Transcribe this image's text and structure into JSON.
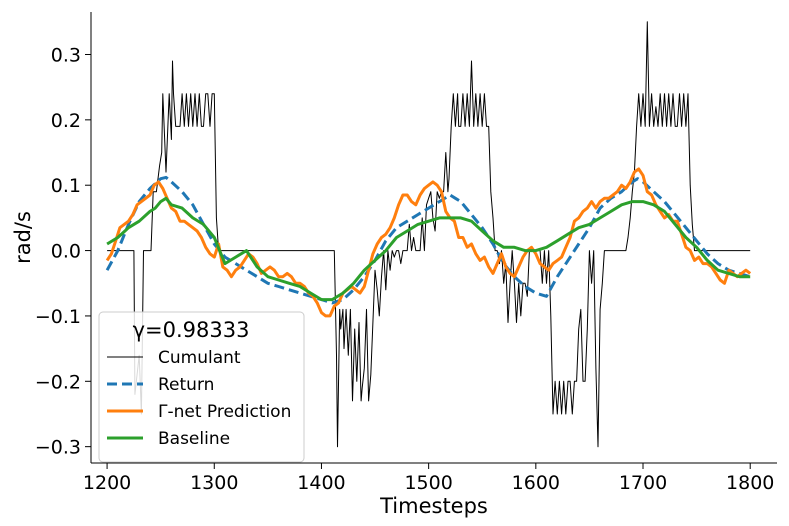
{
  "chart_data": {
    "type": "line",
    "xlabel": "Timesteps",
    "ylabel": "rad/s",
    "xlim": [
      1185,
      1825
    ],
    "ylim": [
      -0.325,
      0.365
    ],
    "xticks": [
      1200,
      1300,
      1400,
      1500,
      1600,
      1700,
      1800
    ],
    "xtick_labels": [
      "1200",
      "1300",
      "1400",
      "1500",
      "1600",
      "1700",
      "1800"
    ],
    "yticks": [
      -0.3,
      -0.2,
      -0.1,
      0.0,
      0.1,
      0.2,
      0.3
    ],
    "ytick_labels": [
      "−0.3",
      "−0.2",
      "−0.1",
      "0.0",
      "0.1",
      "0.2",
      "0.3"
    ],
    "grid": false,
    "legend_position": "lower-left",
    "legend_title": "γ=0.98333",
    "series": [
      {
        "name": "Cumulant",
        "color": "#000000",
        "style": "solid-thin",
        "x": [
          1200,
          1225,
          1226,
          1230,
          1232,
          1234,
          1236,
          1238,
          1241,
          1243,
          1246,
          1249,
          1251,
          1252,
          1255,
          1258,
          1260,
          1261,
          1262,
          1264,
          1268,
          1270,
          1272,
          1274,
          1276,
          1278,
          1280,
          1282,
          1284,
          1286,
          1288,
          1290,
          1292,
          1294,
          1296,
          1298,
          1300,
          1302,
          1304,
          1306,
          1312,
          1400,
          1412,
          1414,
          1415,
          1417,
          1418,
          1420,
          1421,
          1423,
          1425,
          1427,
          1429,
          1431,
          1433,
          1435,
          1437,
          1438,
          1440,
          1442,
          1444,
          1446,
          1448,
          1450,
          1452,
          1454,
          1456,
          1458,
          1460,
          1462,
          1464,
          1466,
          1468,
          1470,
          1472,
          1474,
          1476,
          1478,
          1480,
          1482,
          1484,
          1486,
          1488,
          1490,
          1492,
          1494,
          1496,
          1498,
          1500,
          1502,
          1504,
          1506,
          1508,
          1510,
          1512,
          1514,
          1516,
          1518,
          1519,
          1521,
          1523,
          1525,
          1527,
          1528,
          1530,
          1532,
          1534,
          1536,
          1538,
          1540,
          1542,
          1544,
          1546,
          1548,
          1550,
          1552,
          1554,
          1556,
          1558,
          1560,
          1562,
          1564,
          1566,
          1568,
          1570,
          1572,
          1574,
          1576,
          1578,
          1580,
          1582,
          1584,
          1586,
          1588,
          1590,
          1592,
          1594,
          1596,
          1598,
          1600,
          1602,
          1604,
          1606,
          1608,
          1610,
          1612,
          1614,
          1616,
          1618,
          1620,
          1622,
          1624,
          1626,
          1628,
          1630,
          1632,
          1634,
          1636,
          1638,
          1640,
          1642,
          1644,
          1646,
          1648,
          1650,
          1652,
          1654,
          1656,
          1658,
          1660,
          1662,
          1664,
          1666,
          1668,
          1670,
          1672,
          1674,
          1676,
          1678,
          1680,
          1682,
          1684,
          1686,
          1688,
          1690,
          1692,
          1694,
          1696,
          1698,
          1700,
          1702,
          1704,
          1706,
          1708,
          1710,
          1712,
          1714,
          1716,
          1718,
          1720,
          1722,
          1724,
          1726,
          1728,
          1730,
          1732,
          1734,
          1736,
          1738,
          1740,
          1742,
          1744,
          1746,
          1748,
          1750,
          1752,
          1760,
          1800
        ],
        "y": [
          0.0,
          0.0,
          -0.22,
          -0.16,
          -0.25,
          0.0,
          0.0,
          0.0,
          0.0,
          0.09,
          0.09,
          0.13,
          0.15,
          0.24,
          0.12,
          0.24,
          0.17,
          0.29,
          0.24,
          0.19,
          0.19,
          0.24,
          0.19,
          0.24,
          0.19,
          0.24,
          0.19,
          0.24,
          0.19,
          0.24,
          0.19,
          0.19,
          0.24,
          0.24,
          0.19,
          0.24,
          0.24,
          0.05,
          0.0,
          0.0,
          0.0,
          0.0,
          0.0,
          -0.16,
          -0.3,
          -0.09,
          -0.12,
          -0.09,
          -0.15,
          -0.09,
          -0.16,
          -0.09,
          -0.23,
          -0.12,
          -0.2,
          -0.11,
          -0.23,
          -0.21,
          -0.18,
          -0.09,
          -0.23,
          -0.19,
          -0.11,
          -0.03,
          -0.06,
          -0.1,
          -0.04,
          0.0,
          -0.06,
          0.0,
          -0.03,
          0.0,
          -0.01,
          0.0,
          0.0,
          -0.02,
          0.0,
          0.0,
          0.0,
          0.04,
          0.0,
          0.02,
          0.0,
          0.0,
          0.0,
          0.05,
          0.0,
          0.07,
          0.08,
          0.09,
          0.05,
          0.03,
          0.09,
          0.08,
          0.09,
          0.09,
          0.15,
          0.09,
          0.11,
          0.19,
          0.24,
          0.19,
          0.24,
          0.19,
          0.19,
          0.24,
          0.19,
          0.24,
          0.19,
          0.29,
          0.19,
          0.24,
          0.19,
          0.24,
          0.19,
          0.24,
          0.19,
          0.19,
          0.09,
          0.05,
          0.0,
          0.0,
          -0.02,
          0.0,
          -0.05,
          -0.02,
          -0.11,
          -0.05,
          0.0,
          -0.05,
          -0.11,
          -0.05,
          -0.1,
          -0.05,
          -0.05,
          -0.07,
          0.0,
          0.0,
          0.0,
          0.0,
          0.0,
          0.0,
          -0.05,
          0.0,
          -0.05,
          0.0,
          -0.1,
          -0.25,
          -0.2,
          -0.25,
          -0.2,
          -0.25,
          -0.2,
          -0.25,
          -0.2,
          -0.2,
          -0.25,
          -0.2,
          -0.2,
          -0.12,
          -0.09,
          -0.2,
          -0.2,
          -0.12,
          0.0,
          -0.05,
          0.0,
          -0.18,
          -0.3,
          -0.09,
          -0.05,
          0.0,
          0.0,
          0.0,
          0.0,
          0.0,
          0.0,
          0.0,
          0.0,
          0.0,
          0.0,
          0.0,
          0.02,
          0.05,
          0.09,
          0.12,
          0.19,
          0.24,
          0.19,
          0.24,
          0.19,
          0.35,
          0.19,
          0.24,
          0.19,
          0.22,
          0.19,
          0.24,
          0.19,
          0.24,
          0.19,
          0.24,
          0.19,
          0.24,
          0.19,
          0.19,
          0.24,
          0.19,
          0.24,
          0.19,
          0.24,
          0.1,
          0.04,
          0.0,
          0.0,
          0.0,
          0.0,
          0.0
        ]
      },
      {
        "name": "Return",
        "color": "#1f77b4",
        "style": "dashed",
        "x": [
          1200,
          1210,
          1220,
          1230,
          1240,
          1250,
          1255,
          1260,
          1270,
          1280,
          1290,
          1300,
          1310,
          1320,
          1330,
          1340,
          1350,
          1360,
          1370,
          1380,
          1390,
          1400,
          1410,
          1420,
          1430,
          1440,
          1450,
          1460,
          1470,
          1480,
          1490,
          1500,
          1510,
          1520,
          1525,
          1530,
          1540,
          1550,
          1560,
          1570,
          1580,
          1590,
          1600,
          1610,
          1620,
          1630,
          1640,
          1650,
          1660,
          1670,
          1680,
          1690,
          1695,
          1700,
          1710,
          1720,
          1730,
          1740,
          1750,
          1760,
          1770,
          1780,
          1790,
          1800
        ],
        "y": [
          -0.03,
          0.0,
          0.04,
          0.075,
          0.095,
          0.11,
          0.112,
          0.105,
          0.09,
          0.07,
          0.04,
          0.01,
          -0.01,
          -0.02,
          -0.03,
          -0.04,
          -0.05,
          -0.055,
          -0.06,
          -0.065,
          -0.07,
          -0.075,
          -0.08,
          -0.075,
          -0.06,
          -0.04,
          -0.015,
          0.015,
          0.035,
          0.045,
          0.055,
          0.065,
          0.075,
          0.085,
          0.08,
          0.075,
          0.055,
          0.035,
          0.01,
          -0.02,
          -0.04,
          -0.055,
          -0.065,
          -0.07,
          -0.04,
          -0.015,
          0.01,
          0.035,
          0.065,
          0.08,
          0.09,
          0.105,
          0.11,
          0.105,
          0.09,
          0.075,
          0.055,
          0.035,
          0.015,
          -0.005,
          -0.02,
          -0.03,
          -0.035,
          -0.04
        ]
      },
      {
        "name": "Γ-net Prediction",
        "color": "#ff7f0e",
        "style": "solid",
        "x": [
          1200,
          1204,
          1208,
          1212,
          1216,
          1220,
          1224,
          1228,
          1232,
          1236,
          1240,
          1244,
          1248,
          1252,
          1256,
          1260,
          1264,
          1268,
          1272,
          1276,
          1280,
          1284,
          1288,
          1292,
          1296,
          1300,
          1304,
          1308,
          1312,
          1316,
          1320,
          1324,
          1328,
          1332,
          1336,
          1340,
          1344,
          1348,
          1352,
          1356,
          1360,
          1364,
          1368,
          1372,
          1376,
          1380,
          1384,
          1388,
          1392,
          1396,
          1400,
          1404,
          1408,
          1412,
          1416,
          1420,
          1424,
          1428,
          1432,
          1436,
          1440,
          1444,
          1448,
          1452,
          1456,
          1460,
          1464,
          1468,
          1472,
          1476,
          1480,
          1484,
          1488,
          1492,
          1496,
          1500,
          1504,
          1508,
          1512,
          1516,
          1520,
          1524,
          1528,
          1532,
          1536,
          1540,
          1544,
          1548,
          1552,
          1556,
          1560,
          1564,
          1568,
          1572,
          1576,
          1580,
          1584,
          1588,
          1592,
          1596,
          1600,
          1604,
          1608,
          1612,
          1616,
          1620,
          1624,
          1628,
          1632,
          1636,
          1640,
          1644,
          1648,
          1652,
          1656,
          1660,
          1664,
          1668,
          1672,
          1676,
          1680,
          1684,
          1688,
          1692,
          1696,
          1700,
          1704,
          1708,
          1712,
          1716,
          1720,
          1724,
          1728,
          1732,
          1736,
          1740,
          1744,
          1748,
          1752,
          1756,
          1760,
          1764,
          1768,
          1772,
          1776,
          1780,
          1784,
          1788,
          1792,
          1796,
          1800
        ],
        "y": [
          -0.015,
          -0.005,
          0.015,
          0.035,
          0.04,
          0.045,
          0.055,
          0.07,
          0.075,
          0.08,
          0.085,
          0.1,
          0.105,
          0.095,
          0.08,
          0.065,
          0.06,
          0.045,
          0.045,
          0.04,
          0.035,
          0.03,
          0.02,
          0.005,
          -0.005,
          -0.01,
          0.01,
          -0.025,
          -0.03,
          -0.04,
          -0.03,
          -0.025,
          -0.015,
          -0.005,
          -0.01,
          -0.02,
          -0.035,
          -0.03,
          -0.025,
          -0.03,
          -0.04,
          -0.04,
          -0.035,
          -0.04,
          -0.05,
          -0.05,
          -0.055,
          -0.065,
          -0.07,
          -0.08,
          -0.095,
          -0.1,
          -0.1,
          -0.085,
          -0.08,
          -0.065,
          -0.06,
          -0.055,
          -0.06,
          -0.065,
          -0.055,
          -0.03,
          -0.005,
          0.01,
          0.02,
          0.025,
          0.035,
          0.05,
          0.07,
          0.085,
          0.085,
          0.075,
          0.07,
          0.085,
          0.095,
          0.1,
          0.105,
          0.1,
          0.09,
          0.06,
          0.05,
          0.045,
          0.02,
          0.02,
          0.005,
          0.01,
          -0.005,
          -0.015,
          -0.01,
          -0.025,
          -0.035,
          -0.02,
          -0.005,
          -0.025,
          -0.035,
          -0.04,
          -0.025,
          -0.01,
          0.0,
          0.005,
          -0.005,
          -0.02,
          -0.025,
          -0.03,
          -0.02,
          -0.015,
          -0.01,
          0.005,
          0.02,
          0.045,
          0.05,
          0.06,
          0.065,
          0.075,
          0.065,
          0.075,
          0.08,
          0.08,
          0.085,
          0.09,
          0.1,
          0.095,
          0.105,
          0.12,
          0.125,
          0.115,
          0.09,
          0.085,
          0.07,
          0.06,
          0.05,
          0.055,
          0.045,
          0.045,
          0.025,
          0.005,
          0.0,
          -0.015,
          -0.01,
          -0.02,
          -0.02,
          -0.025,
          -0.035,
          -0.045,
          -0.05,
          -0.03,
          -0.035,
          -0.04,
          -0.035,
          -0.03,
          -0.035
        ]
      },
      {
        "name": "Baseline",
        "color": "#2ca02c",
        "style": "solid",
        "x": [
          1200,
          1210,
          1220,
          1230,
          1240,
          1245,
          1250,
          1255,
          1260,
          1270,
          1280,
          1290,
          1300,
          1305,
          1310,
          1320,
          1330,
          1340,
          1350,
          1360,
          1370,
          1380,
          1390,
          1400,
          1410,
          1420,
          1430,
          1440,
          1450,
          1460,
          1470,
          1480,
          1490,
          1500,
          1510,
          1520,
          1530,
          1540,
          1550,
          1560,
          1570,
          1580,
          1590,
          1600,
          1610,
          1620,
          1630,
          1640,
          1650,
          1660,
          1670,
          1680,
          1690,
          1700,
          1710,
          1720,
          1730,
          1740,
          1750,
          1760,
          1770,
          1780,
          1790,
          1800
        ],
        "y": [
          0.01,
          0.02,
          0.035,
          0.045,
          0.06,
          0.065,
          0.075,
          0.08,
          0.07,
          0.065,
          0.05,
          0.04,
          0.02,
          0.0,
          -0.02,
          -0.01,
          0.0,
          -0.025,
          -0.04,
          -0.045,
          -0.05,
          -0.055,
          -0.065,
          -0.075,
          -0.075,
          -0.065,
          -0.05,
          -0.03,
          -0.015,
          0.0,
          0.02,
          0.03,
          0.04,
          0.045,
          0.05,
          0.05,
          0.05,
          0.045,
          0.03,
          0.015,
          0.005,
          0.005,
          0.0,
          0.0,
          0.005,
          0.015,
          0.025,
          0.035,
          0.04,
          0.05,
          0.06,
          0.07,
          0.075,
          0.075,
          0.07,
          0.06,
          0.04,
          0.02,
          0.005,
          -0.015,
          -0.03,
          -0.035,
          -0.04,
          -0.04
        ]
      }
    ]
  }
}
